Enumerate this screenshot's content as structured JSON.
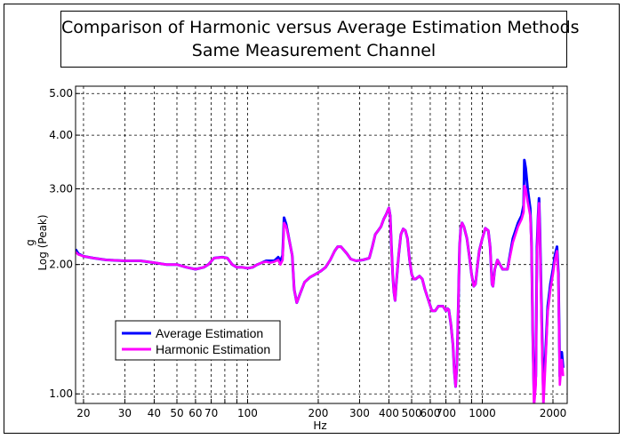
{
  "chart_data": {
    "type": "line",
    "title": "Comparison of Harmonic versus Average Estimation Methods",
    "subtitle": "Same Measurement Channel",
    "xlabel": "Hz",
    "ylabel": "g",
    "ylabel2": "Log (Peak)",
    "xscale": "log",
    "yscale": "log",
    "xlim": [
      18.5,
      2300
    ],
    "ylim": [
      0.95,
      5.2
    ],
    "grid": true,
    "legend_position": "lower-left",
    "x_ticks": [
      {
        "value": 20,
        "label": "20"
      },
      {
        "value": 30,
        "label": "30"
      },
      {
        "value": 40,
        "label": "40"
      },
      {
        "value": 50,
        "label": "50"
      },
      {
        "value": 60,
        "label": "60"
      },
      {
        "value": 70,
        "label": "70"
      },
      {
        "value": 80,
        "label": ""
      },
      {
        "value": 90,
        "label": ""
      },
      {
        "value": 100,
        "label": "100"
      },
      {
        "value": 200,
        "label": "200"
      },
      {
        "value": 300,
        "label": "300"
      },
      {
        "value": 400,
        "label": "400"
      },
      {
        "value": 500,
        "label": "500"
      },
      {
        "value": 600,
        "label": "600"
      },
      {
        "value": 700,
        "label": "700"
      },
      {
        "value": 800,
        "label": ""
      },
      {
        "value": 900,
        "label": ""
      },
      {
        "value": 1000,
        "label": "1000"
      },
      {
        "value": 2000,
        "label": "2000"
      }
    ],
    "y_ticks": [
      {
        "value": 1.0,
        "label": "1.00"
      },
      {
        "value": 2.0,
        "label": "2.00"
      },
      {
        "value": 3.0,
        "label": "3.00"
      },
      {
        "value": 4.0,
        "label": "4.00"
      },
      {
        "value": 5.0,
        "label": "5.00"
      }
    ],
    "series": [
      {
        "name": "Average Estimation",
        "color": "#0000ff",
        "points": [
          [
            18.5,
            2.17
          ],
          [
            19,
            2.12
          ],
          [
            20,
            2.09
          ],
          [
            22,
            2.07
          ],
          [
            25,
            2.05
          ],
          [
            30,
            2.04
          ],
          [
            35,
            2.04
          ],
          [
            40,
            2.02
          ],
          [
            45,
            2.0
          ],
          [
            50,
            2.0
          ],
          [
            55,
            1.97
          ],
          [
            60,
            1.95
          ],
          [
            65,
            1.97
          ],
          [
            68,
            2.0
          ],
          [
            72,
            2.07
          ],
          [
            78,
            2.08
          ],
          [
            82,
            2.07
          ],
          [
            86,
            2.0
          ],
          [
            90,
            1.97
          ],
          [
            95,
            1.97
          ],
          [
            100,
            1.96
          ],
          [
            105,
            1.97
          ],
          [
            110,
            2.0
          ],
          [
            115,
            2.02
          ],
          [
            120,
            2.04
          ],
          [
            130,
            2.04
          ],
          [
            135,
            2.08
          ],
          [
            138,
            2.04
          ],
          [
            141,
            2.1
          ],
          [
            143,
            2.57
          ],
          [
            146,
            2.48
          ],
          [
            150,
            2.3
          ],
          [
            155,
            2.1
          ],
          [
            158,
            1.75
          ],
          [
            162,
            1.63
          ],
          [
            168,
            1.72
          ],
          [
            175,
            1.82
          ],
          [
            185,
            1.87
          ],
          [
            195,
            1.9
          ],
          [
            205,
            1.93
          ],
          [
            215,
            1.97
          ],
          [
            225,
            2.05
          ],
          [
            235,
            2.15
          ],
          [
            242,
            2.2
          ],
          [
            250,
            2.2
          ],
          [
            265,
            2.12
          ],
          [
            275,
            2.06
          ],
          [
            290,
            2.04
          ],
          [
            310,
            2.05
          ],
          [
            330,
            2.07
          ],
          [
            340,
            2.2
          ],
          [
            350,
            2.35
          ],
          [
            360,
            2.4
          ],
          [
            370,
            2.45
          ],
          [
            380,
            2.55
          ],
          [
            390,
            2.62
          ],
          [
            400,
            2.71
          ],
          [
            405,
            2.6
          ],
          [
            410,
            2.2
          ],
          [
            415,
            1.9
          ],
          [
            420,
            1.73
          ],
          [
            425,
            1.65
          ],
          [
            430,
            1.8
          ],
          [
            440,
            2.1
          ],
          [
            450,
            2.35
          ],
          [
            460,
            2.42
          ],
          [
            470,
            2.4
          ],
          [
            480,
            2.3
          ],
          [
            490,
            2.05
          ],
          [
            500,
            1.9
          ],
          [
            510,
            1.85
          ],
          [
            520,
            1.85
          ],
          [
            540,
            1.88
          ],
          [
            555,
            1.85
          ],
          [
            570,
            1.75
          ],
          [
            590,
            1.65
          ],
          [
            610,
            1.56
          ],
          [
            630,
            1.56
          ],
          [
            650,
            1.6
          ],
          [
            680,
            1.6
          ],
          [
            700,
            1.56
          ],
          [
            710,
            1.58
          ],
          [
            720,
            1.57
          ],
          [
            735,
            1.45
          ],
          [
            750,
            1.3
          ],
          [
            760,
            1.13
          ],
          [
            770,
            1.04
          ],
          [
            780,
            1.18
          ],
          [
            790,
            1.6
          ],
          [
            800,
            2.2
          ],
          [
            810,
            2.44
          ],
          [
            820,
            2.5
          ],
          [
            835,
            2.45
          ],
          [
            860,
            2.3
          ],
          [
            880,
            2.1
          ],
          [
            900,
            1.9
          ],
          [
            920,
            1.78
          ],
          [
            935,
            1.8
          ],
          [
            950,
            1.95
          ],
          [
            970,
            2.15
          ],
          [
            1000,
            2.3
          ],
          [
            1030,
            2.43
          ],
          [
            1060,
            2.4
          ],
          [
            1080,
            2.2
          ],
          [
            1100,
            1.8
          ],
          [
            1110,
            1.78
          ],
          [
            1130,
            1.95
          ],
          [
            1160,
            2.05
          ],
          [
            1190,
            2.0
          ],
          [
            1220,
            1.95
          ],
          [
            1280,
            1.95
          ],
          [
            1350,
            2.3
          ],
          [
            1420,
            2.5
          ],
          [
            1470,
            2.6
          ],
          [
            1500,
            2.75
          ],
          [
            1510,
            3.5
          ],
          [
            1530,
            3.35
          ],
          [
            1560,
            3.0
          ],
          [
            1600,
            2.7
          ],
          [
            1620,
            2.25
          ],
          [
            1640,
            1.4
          ],
          [
            1660,
            1.0
          ],
          [
            1690,
            1.1
          ],
          [
            1710,
            2.2
          ],
          [
            1730,
            2.6
          ],
          [
            1745,
            2.85
          ],
          [
            1760,
            2.4
          ],
          [
            1790,
            1.5
          ],
          [
            1820,
            1.0
          ],
          [
            1860,
            1.25
          ],
          [
            1900,
            1.6
          ],
          [
            1950,
            1.8
          ],
          [
            2000,
            1.95
          ],
          [
            2040,
            2.1
          ],
          [
            2080,
            2.2
          ],
          [
            2110,
            1.9
          ],
          [
            2140,
            1.1
          ],
          [
            2180,
            1.25
          ],
          [
            2210,
            1.15
          ]
        ]
      },
      {
        "name": "Harmonic Estimation",
        "color": "#ff00ff",
        "points": [
          [
            18.5,
            2.14
          ],
          [
            19,
            2.11
          ],
          [
            20,
            2.09
          ],
          [
            22,
            2.07
          ],
          [
            25,
            2.05
          ],
          [
            30,
            2.04
          ],
          [
            35,
            2.04
          ],
          [
            40,
            2.02
          ],
          [
            45,
            2.0
          ],
          [
            50,
            2.0
          ],
          [
            55,
            1.97
          ],
          [
            60,
            1.95
          ],
          [
            65,
            1.97
          ],
          [
            68,
            2.0
          ],
          [
            72,
            2.07
          ],
          [
            78,
            2.08
          ],
          [
            82,
            2.07
          ],
          [
            86,
            2.0
          ],
          [
            90,
            1.97
          ],
          [
            95,
            1.97
          ],
          [
            100,
            1.96
          ],
          [
            105,
            1.97
          ],
          [
            110,
            2.0
          ],
          [
            115,
            2.02
          ],
          [
            120,
            2.03
          ],
          [
            125,
            2.02
          ],
          [
            130,
            2.03
          ],
          [
            135,
            2.05
          ],
          [
            138,
            2.0
          ],
          [
            141,
            2.05
          ],
          [
            143,
            2.5
          ],
          [
            146,
            2.45
          ],
          [
            150,
            2.3
          ],
          [
            155,
            2.1
          ],
          [
            158,
            1.75
          ],
          [
            162,
            1.63
          ],
          [
            168,
            1.72
          ],
          [
            175,
            1.82
          ],
          [
            185,
            1.87
          ],
          [
            195,
            1.9
          ],
          [
            205,
            1.93
          ],
          [
            215,
            1.97
          ],
          [
            225,
            2.05
          ],
          [
            235,
            2.15
          ],
          [
            242,
            2.2
          ],
          [
            250,
            2.2
          ],
          [
            265,
            2.12
          ],
          [
            275,
            2.06
          ],
          [
            290,
            2.04
          ],
          [
            310,
            2.05
          ],
          [
            330,
            2.07
          ],
          [
            340,
            2.2
          ],
          [
            350,
            2.35
          ],
          [
            360,
            2.4
          ],
          [
            370,
            2.45
          ],
          [
            380,
            2.55
          ],
          [
            390,
            2.62
          ],
          [
            400,
            2.71
          ],
          [
            405,
            2.6
          ],
          [
            410,
            2.2
          ],
          [
            415,
            1.9
          ],
          [
            420,
            1.73
          ],
          [
            425,
            1.65
          ],
          [
            430,
            1.8
          ],
          [
            440,
            2.1
          ],
          [
            450,
            2.35
          ],
          [
            460,
            2.42
          ],
          [
            470,
            2.4
          ],
          [
            480,
            2.3
          ],
          [
            490,
            2.05
          ],
          [
            500,
            1.9
          ],
          [
            510,
            1.85
          ],
          [
            520,
            1.85
          ],
          [
            540,
            1.88
          ],
          [
            555,
            1.85
          ],
          [
            570,
            1.75
          ],
          [
            590,
            1.65
          ],
          [
            610,
            1.56
          ],
          [
            630,
            1.56
          ],
          [
            650,
            1.6
          ],
          [
            680,
            1.6
          ],
          [
            700,
            1.56
          ],
          [
            710,
            1.58
          ],
          [
            720,
            1.57
          ],
          [
            735,
            1.45
          ],
          [
            750,
            1.3
          ],
          [
            760,
            1.13
          ],
          [
            770,
            1.04
          ],
          [
            780,
            1.18
          ],
          [
            790,
            1.6
          ],
          [
            800,
            2.2
          ],
          [
            810,
            2.44
          ],
          [
            820,
            2.5
          ],
          [
            835,
            2.45
          ],
          [
            860,
            2.3
          ],
          [
            880,
            2.1
          ],
          [
            900,
            1.9
          ],
          [
            920,
            1.78
          ],
          [
            935,
            1.8
          ],
          [
            950,
            1.95
          ],
          [
            970,
            2.15
          ],
          [
            1000,
            2.3
          ],
          [
            1030,
            2.43
          ],
          [
            1060,
            2.4
          ],
          [
            1080,
            2.2
          ],
          [
            1100,
            1.8
          ],
          [
            1110,
            1.78
          ],
          [
            1130,
            1.95
          ],
          [
            1160,
            2.05
          ],
          [
            1190,
            2.0
          ],
          [
            1220,
            1.95
          ],
          [
            1280,
            1.95
          ],
          [
            1350,
            2.25
          ],
          [
            1420,
            2.45
          ],
          [
            1470,
            2.55
          ],
          [
            1500,
            2.65
          ],
          [
            1510,
            3.05
          ],
          [
            1530,
            3.0
          ],
          [
            1560,
            2.8
          ],
          [
            1600,
            2.6
          ],
          [
            1620,
            2.2
          ],
          [
            1640,
            1.4
          ],
          [
            1660,
            0.93
          ],
          [
            1690,
            1.05
          ],
          [
            1710,
            2.1
          ],
          [
            1730,
            2.55
          ],
          [
            1745,
            2.78
          ],
          [
            1760,
            2.3
          ],
          [
            1790,
            1.4
          ],
          [
            1820,
            0.93
          ],
          [
            1860,
            1.2
          ],
          [
            1900,
            1.55
          ],
          [
            1950,
            1.75
          ],
          [
            2000,
            1.9
          ],
          [
            2040,
            2.05
          ],
          [
            2080,
            2.15
          ],
          [
            2110,
            1.85
          ],
          [
            2140,
            1.05
          ],
          [
            2180,
            1.2
          ],
          [
            2210,
            1.1
          ]
        ]
      }
    ]
  }
}
